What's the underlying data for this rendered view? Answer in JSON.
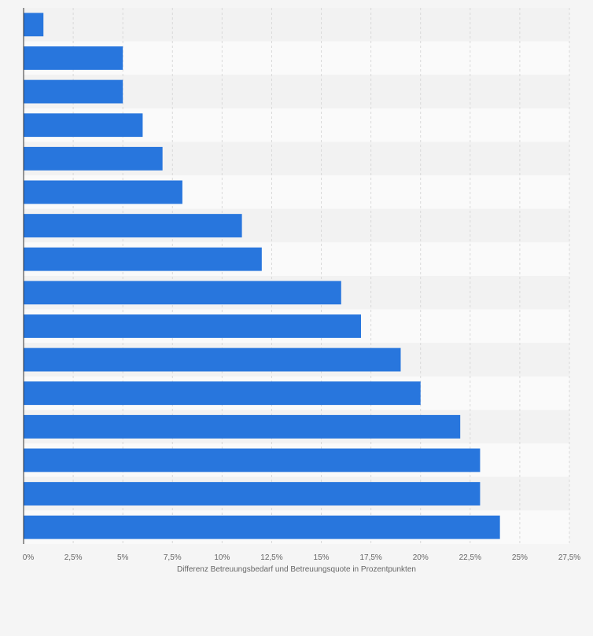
{
  "chart_data": {
    "type": "bar",
    "orientation": "horizontal",
    "categories": [
      "",
      "",
      "",
      "",
      "",
      "",
      "",
      "",
      "",
      "",
      "",
      "",
      "",
      "",
      "",
      ""
    ],
    "values": [
      1,
      5,
      5,
      6,
      7,
      8,
      11,
      12,
      16,
      17,
      19,
      20,
      22,
      23,
      23,
      24
    ],
    "xlabel": "Differenz Betreuungsbedarf und Betreuungsquote in Prozentpunkten",
    "ylabel": "",
    "xlim": [
      0,
      27.5
    ],
    "xticks": [
      0,
      2.5,
      5,
      7.5,
      10,
      12.5,
      15,
      17.5,
      20,
      22.5,
      25,
      27.5
    ],
    "xtick_labels": [
      "0%",
      "2,5%",
      "5%",
      "7,5%",
      "10%",
      "12,5%",
      "15%",
      "17,5%",
      "20%",
      "22,5%",
      "25%",
      "27,5%"
    ],
    "grid": true,
    "bar_color": "#2876dd",
    "band_colors": [
      "#f2f2f2",
      "#fafafa"
    ]
  }
}
